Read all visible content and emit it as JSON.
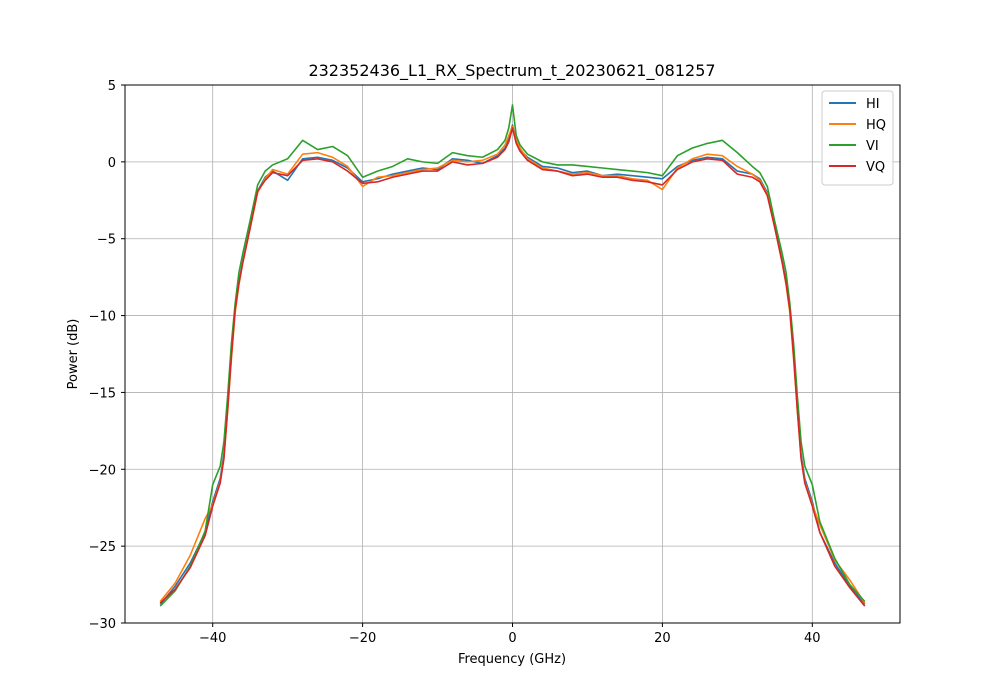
{
  "chart_data": {
    "type": "line",
    "title": "232352436_L1_RX_Spectrum_t_20230621_081257",
    "xlabel": "Frequency (GHz)",
    "ylabel": "Power (dB)",
    "xlim": [
      -51.7,
      51.7
    ],
    "ylim": [
      -30,
      5
    ],
    "xticks": [
      -40,
      -20,
      0,
      20,
      40
    ],
    "xtick_labels": [
      "−40",
      "−20",
      "0",
      "20",
      "40"
    ],
    "yticks": [
      5,
      0,
      -5,
      -10,
      -15,
      -20,
      -25,
      -30
    ],
    "ytick_labels": [
      "5",
      "0",
      "−5",
      "−10",
      "−15",
      "−20",
      "−25",
      "−30"
    ],
    "grid": true,
    "legend_position": "top-right",
    "series": [
      {
        "name": "HI",
        "color": "#1f77b4",
        "x": [
          -47,
          -45,
          -43,
          -41,
          -40,
          -39,
          -38.5,
          -38,
          -37.5,
          -37,
          -36.5,
          -36,
          -35,
          -34,
          -33,
          -32,
          -30,
          -28,
          -26,
          -24,
          -22,
          -20,
          -18,
          -16,
          -14,
          -12,
          -10,
          -8,
          -6,
          -4,
          -2,
          -1,
          -0.5,
          0,
          0.5,
          1,
          2,
          4,
          6,
          8,
          10,
          12,
          14,
          16,
          18,
          20,
          22,
          24,
          26,
          28,
          30,
          32,
          33,
          34,
          35,
          36,
          36.5,
          37,
          37.5,
          38,
          38.5,
          39,
          40,
          41,
          43,
          45,
          47
        ],
        "y": [
          -28.8,
          -27.6,
          -26.1,
          -24.1,
          -22.1,
          -20.6,
          -19.0,
          -16.0,
          -12.5,
          -9.5,
          -7.8,
          -6.5,
          -4.2,
          -1.9,
          -1.0,
          -0.6,
          -1.2,
          0.2,
          0.3,
          0.1,
          -0.4,
          -1.3,
          -1.1,
          -0.8,
          -0.6,
          -0.4,
          -0.5,
          0.2,
          0.1,
          -0.1,
          0.4,
          0.9,
          1.5,
          2.4,
          1.4,
          0.8,
          0.3,
          -0.3,
          -0.4,
          -0.7,
          -0.6,
          -0.9,
          -0.8,
          -0.9,
          -1.0,
          -1.1,
          -0.3,
          0.1,
          0.3,
          0.2,
          -0.6,
          -0.8,
          -1.1,
          -2.0,
          -4.2,
          -6.5,
          -7.8,
          -9.5,
          -12.5,
          -16.0,
          -19.0,
          -20.6,
          -22.1,
          -24.1,
          -26.1,
          -27.6,
          -28.8
        ]
      },
      {
        "name": "HQ",
        "color": "#ff7f0e",
        "x": [
          -47,
          -45,
          -43,
          -41,
          -40,
          -39,
          -38.5,
          -38,
          -37.5,
          -37,
          -36.5,
          -36,
          -35,
          -34,
          -33,
          -32,
          -30,
          -28,
          -26,
          -24,
          -22,
          -20,
          -18,
          -16,
          -14,
          -12,
          -10,
          -8,
          -6,
          -4,
          -2,
          -1,
          -0.5,
          0,
          0.5,
          1,
          2,
          4,
          6,
          8,
          10,
          12,
          14,
          16,
          18,
          20,
          22,
          24,
          26,
          28,
          30,
          32,
          33,
          34,
          35,
          36,
          36.5,
          37,
          37.5,
          38,
          38.5,
          39,
          40,
          41,
          43,
          45,
          47
        ],
        "y": [
          -28.6,
          -27.4,
          -25.6,
          -23.2,
          -22.3,
          -20.8,
          -19.2,
          -16.2,
          -12.8,
          -9.8,
          -8.0,
          -6.6,
          -4.3,
          -2.0,
          -1.1,
          -0.5,
          -0.8,
          0.5,
          0.6,
          0.3,
          -0.3,
          -1.6,
          -1.0,
          -0.9,
          -0.7,
          -0.5,
          -0.4,
          0.1,
          0.0,
          0.1,
          0.5,
          1.1,
          1.7,
          2.3,
          1.5,
          0.9,
          0.2,
          -0.4,
          -0.6,
          -0.8,
          -0.7,
          -0.9,
          -0.9,
          -1.1,
          -1.2,
          -1.8,
          -0.4,
          0.2,
          0.5,
          0.4,
          -0.3,
          -0.8,
          -1.2,
          -2.1,
          -4.3,
          -6.6,
          -8.0,
          -9.8,
          -12.8,
          -16.2,
          -19.2,
          -20.8,
          -22.3,
          -23.6,
          -25.9,
          -27.2,
          -28.7
        ]
      },
      {
        "name": "VI",
        "color": "#2ca02c",
        "x": [
          -47,
          -45,
          -43,
          -41,
          -40,
          -39,
          -38.5,
          -38,
          -37.5,
          -37,
          -36.5,
          -36,
          -35,
          -34,
          -33,
          -32,
          -30,
          -28,
          -26,
          -24,
          -22,
          -20,
          -18,
          -16,
          -14,
          -12,
          -10,
          -8,
          -6,
          -4,
          -2,
          -1,
          -0.5,
          0,
          0.5,
          1,
          2,
          4,
          6,
          8,
          10,
          12,
          14,
          16,
          18,
          20,
          22,
          24,
          26,
          28,
          30,
          32,
          33,
          34,
          35,
          36,
          36.5,
          37,
          37.5,
          38,
          38.5,
          39,
          40,
          41,
          43,
          45,
          47
        ],
        "y": [
          -28.9,
          -27.9,
          -26.3,
          -24.0,
          -21.0,
          -19.8,
          -18.2,
          -15.2,
          -11.8,
          -9.2,
          -7.2,
          -6.0,
          -3.8,
          -1.5,
          -0.6,
          -0.2,
          0.2,
          1.4,
          0.8,
          1.0,
          0.4,
          -1.0,
          -0.6,
          -0.3,
          0.2,
          0.0,
          -0.1,
          0.6,
          0.4,
          0.3,
          0.8,
          1.4,
          2.2,
          3.7,
          1.7,
          1.1,
          0.5,
          0.0,
          -0.2,
          -0.2,
          -0.3,
          -0.4,
          -0.5,
          -0.6,
          -0.7,
          -0.9,
          0.4,
          0.9,
          1.2,
          1.4,
          0.6,
          -0.3,
          -0.7,
          -1.6,
          -3.9,
          -6.0,
          -7.2,
          -9.2,
          -11.8,
          -15.2,
          -18.2,
          -19.8,
          -21.0,
          -23.4,
          -25.8,
          -27.5,
          -28.6
        ]
      },
      {
        "name": "VQ",
        "color": "#d62728",
        "x": [
          -47,
          -45,
          -43,
          -41,
          -40,
          -39,
          -38.5,
          -38,
          -37.5,
          -37,
          -36.5,
          -36,
          -35,
          -34,
          -33,
          -32,
          -30,
          -28,
          -26,
          -24,
          -22,
          -20,
          -18,
          -16,
          -14,
          -12,
          -10,
          -8,
          -6,
          -4,
          -2,
          -1,
          -0.5,
          0,
          0.5,
          1,
          2,
          4,
          6,
          8,
          10,
          12,
          14,
          16,
          18,
          20,
          22,
          24,
          26,
          28,
          30,
          32,
          33,
          34,
          35,
          36,
          36.5,
          37,
          37.5,
          38,
          38.5,
          39,
          40,
          41,
          43,
          45,
          47
        ],
        "y": [
          -28.7,
          -27.8,
          -26.4,
          -24.3,
          -22.4,
          -20.9,
          -19.3,
          -16.1,
          -12.6,
          -9.6,
          -7.9,
          -6.6,
          -4.3,
          -1.9,
          -1.2,
          -0.7,
          -0.9,
          0.1,
          0.2,
          0.0,
          -0.6,
          -1.4,
          -1.3,
          -1.0,
          -0.8,
          -0.6,
          -0.6,
          0.0,
          -0.2,
          -0.1,
          0.3,
          0.8,
          1.3,
          2.2,
          1.2,
          0.7,
          0.1,
          -0.5,
          -0.6,
          -0.9,
          -0.8,
          -1.0,
          -1.0,
          -1.2,
          -1.3,
          -1.5,
          -0.5,
          0.0,
          0.2,
          0.1,
          -0.8,
          -1.0,
          -1.3,
          -2.2,
          -4.3,
          -6.6,
          -7.9,
          -9.6,
          -12.6,
          -16.1,
          -19.3,
          -20.9,
          -22.4,
          -24.1,
          -26.3,
          -27.7,
          -28.9
        ]
      }
    ]
  }
}
